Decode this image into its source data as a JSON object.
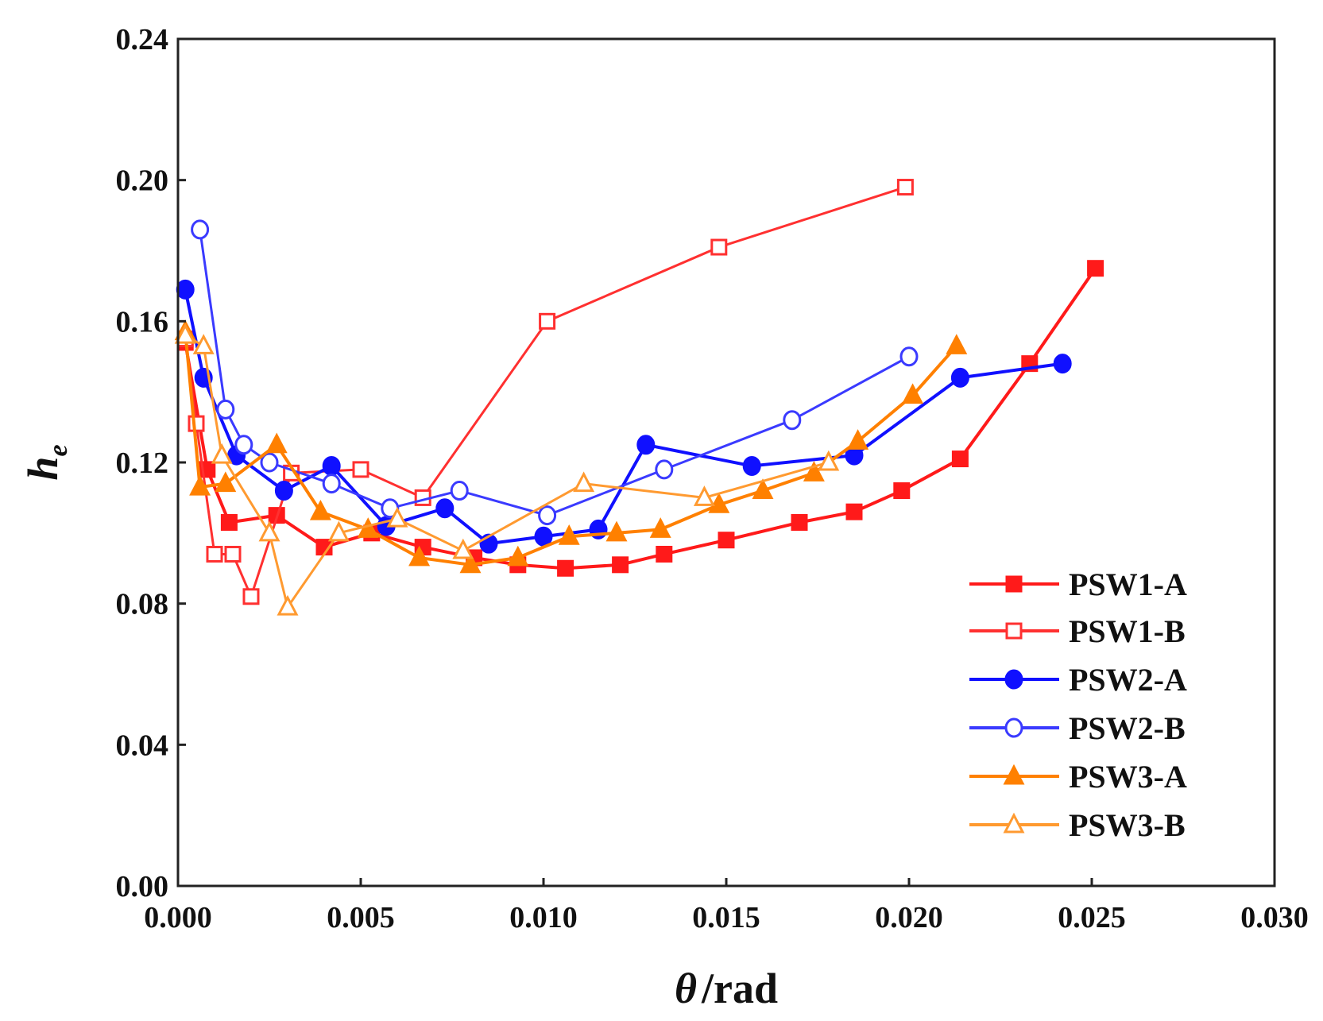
{
  "chart_data": {
    "type": "line",
    "title": "",
    "xlabel": "θ /rad",
    "xlabel_symbol": "θ",
    "xlabel_unit": "/rad",
    "ylabel": "h_e",
    "ylabel_main": "h",
    "ylabel_sub": "e",
    "xlim": [
      0,
      0.03
    ],
    "ylim": [
      0,
      0.24
    ],
    "xticks": [
      "0.000",
      "0.005",
      "0.010",
      "0.015",
      "0.020",
      "0.025",
      "0.030"
    ],
    "xtick_values": [
      0,
      0.005,
      0.01,
      0.015,
      0.02,
      0.025,
      0.03
    ],
    "yticks": [
      "0.00",
      "0.04",
      "0.08",
      "0.12",
      "0.16",
      "0.20",
      "0.24"
    ],
    "ytick_values": [
      0,
      0.04,
      0.08,
      0.12,
      0.16,
      0.2,
      0.24
    ],
    "grid": false,
    "legend_position": "bottom-right",
    "series": [
      {
        "name": "PSW1-A",
        "color": "#ff1a1a",
        "marker": "square",
        "filled": true,
        "x": [
          0.0002,
          0.0008,
          0.0014,
          0.0027,
          0.004,
          0.0053,
          0.0067,
          0.0081,
          0.0093,
          0.0106,
          0.0121,
          0.0133,
          0.015,
          0.017,
          0.0185,
          0.0198,
          0.0214,
          0.0233,
          0.0251
        ],
        "y": [
          0.154,
          0.118,
          0.103,
          0.105,
          0.096,
          0.1,
          0.096,
          0.093,
          0.091,
          0.09,
          0.091,
          0.094,
          0.098,
          0.103,
          0.106,
          0.112,
          0.121,
          0.148,
          0.175
        ]
      },
      {
        "name": "PSW1-B",
        "color": "#ff3030",
        "marker": "square",
        "filled": false,
        "x": [
          0.0002,
          0.0005,
          0.001,
          0.0015,
          0.002,
          0.0031,
          0.005,
          0.0067,
          0.0101,
          0.0148,
          0.0199
        ],
        "y": [
          0.155,
          0.131,
          0.094,
          0.094,
          0.082,
          0.117,
          0.118,
          0.11,
          0.16,
          0.181,
          0.198
        ]
      },
      {
        "name": "PSW2-A",
        "color": "#1010ff",
        "marker": "circle",
        "filled": true,
        "x": [
          0.0002,
          0.0007,
          0.0016,
          0.0029,
          0.0042,
          0.0057,
          0.0073,
          0.0085,
          0.01,
          0.0115,
          0.0128,
          0.0157,
          0.0185,
          0.0214,
          0.0242
        ],
        "y": [
          0.169,
          0.144,
          0.122,
          0.112,
          0.119,
          0.102,
          0.107,
          0.097,
          0.099,
          0.101,
          0.125,
          0.119,
          0.122,
          0.144,
          0.148
        ]
      },
      {
        "name": "PSW2-B",
        "color": "#3a3aff",
        "marker": "circle",
        "filled": false,
        "x": [
          0.0006,
          0.0013,
          0.0018,
          0.0025,
          0.0042,
          0.0058,
          0.0077,
          0.0101,
          0.0133,
          0.0168,
          0.02
        ],
        "y": [
          0.186,
          0.135,
          0.125,
          0.12,
          0.114,
          0.107,
          0.112,
          0.105,
          0.118,
          0.132,
          0.15
        ]
      },
      {
        "name": "PSW3-A",
        "color": "#ff8000",
        "marker": "triangle",
        "filled": true,
        "x": [
          0.0002,
          0.0006,
          0.0013,
          0.0027,
          0.0039,
          0.0052,
          0.0066,
          0.008,
          0.0093,
          0.0107,
          0.012,
          0.0132,
          0.0148,
          0.016,
          0.0174,
          0.0186,
          0.0201,
          0.0213
        ],
        "y": [
          0.157,
          0.113,
          0.114,
          0.125,
          0.106,
          0.101,
          0.093,
          0.091,
          0.093,
          0.099,
          0.1,
          0.101,
          0.108,
          0.112,
          0.117,
          0.126,
          0.139,
          0.153
        ]
      },
      {
        "name": "PSW3-B",
        "color": "#ff9a30",
        "marker": "triangle",
        "filled": false,
        "x": [
          0.0002,
          0.0007,
          0.0012,
          0.0025,
          0.003,
          0.0044,
          0.006,
          0.0078,
          0.0111,
          0.0144,
          0.0178
        ],
        "y": [
          0.156,
          0.153,
          0.122,
          0.1,
          0.079,
          0.1,
          0.104,
          0.095,
          0.114,
          0.11,
          0.12
        ]
      }
    ]
  }
}
